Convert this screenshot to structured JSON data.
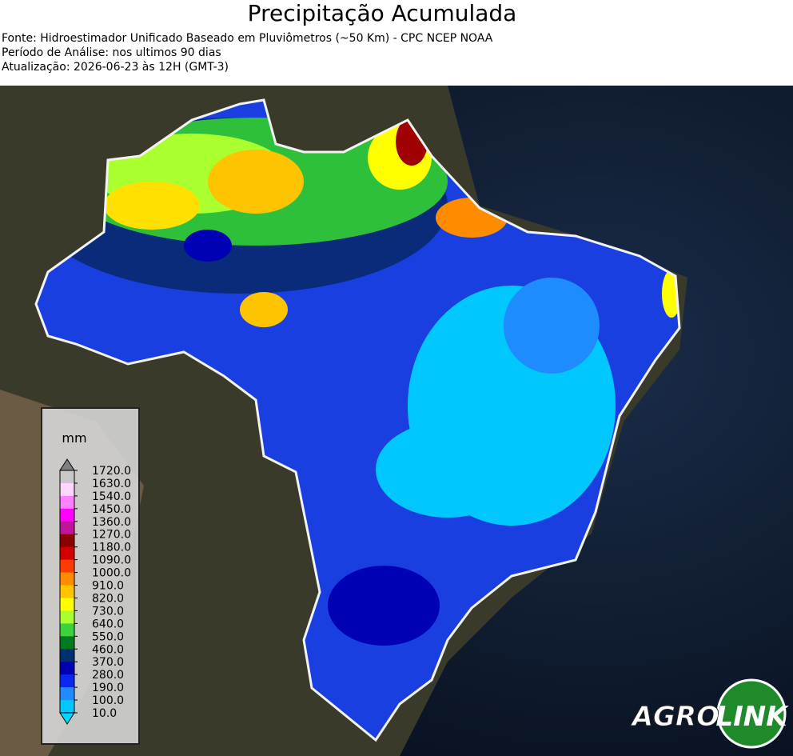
{
  "header": {
    "title": "Precipitação Acumulada",
    "lines": [
      "Fonte: Hidroestimador Unificado Baseado em Pluviômetros (~50 Km) - CPC NCEP NOAA",
      "Período de Análise: nos ultimos 90 dias",
      "Atualização: 2026-06-23 às 12H (GMT-3)"
    ]
  },
  "legend": {
    "unit": "mm",
    "ticks": [
      "1720.0",
      "1630.0",
      "1540.0",
      "1450.0",
      "1360.0",
      "1270.0",
      "1180.0",
      "1090.0",
      "1000.0",
      "910.0",
      "820.0",
      "730.0",
      "640.0",
      "550.0",
      "460.0",
      "370.0",
      "280.0",
      "190.0",
      "100.0",
      "10.0"
    ],
    "colors": [
      "#c8c8c8",
      "#ffd6ff",
      "#ff80ff",
      "#ff00ff",
      "#c0149a",
      "#8b0000",
      "#d40000",
      "#ff3c00",
      "#ff8c00",
      "#ffc400",
      "#ffff00",
      "#aaff2f",
      "#3cd23c",
      "#007a1e",
      "#003070",
      "#0000b4",
      "#0a28f0",
      "#1e8cff",
      "#00c8ff"
    ],
    "top_color": "#808080",
    "bottom_color": "#00d8ff"
  },
  "logo": {
    "left": "AGRO",
    "right": "LINK"
  }
}
